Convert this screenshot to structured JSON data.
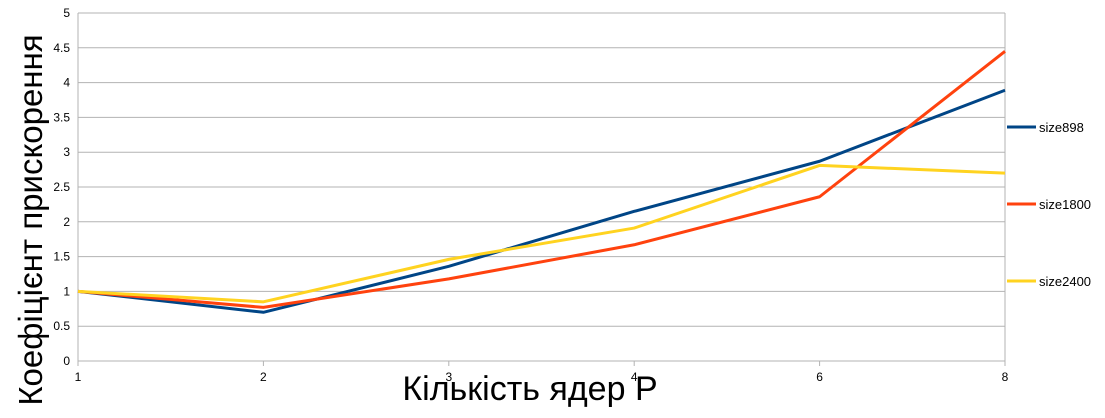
{
  "chart_data": {
    "type": "line",
    "xlabel": "Кількість ядер P",
    "ylabel": "Коефіцієнт прискорення",
    "x_ticks": [
      1,
      2,
      3,
      4,
      6,
      8
    ],
    "y_ticks": [
      "0",
      "0.5",
      "1",
      "1.5",
      "2",
      "2.5",
      "3",
      "3.5",
      "4",
      "4.5",
      "5"
    ],
    "ylim": [
      0,
      5
    ],
    "grid": "horizontal",
    "legend_position": "right",
    "series": [
      {
        "name": "size898",
        "color": "#004586",
        "x": [
          1,
          2,
          3,
          4,
          6,
          8
        ],
        "values": [
          1.0,
          0.7,
          1.36,
          2.15,
          2.87,
          3.89
        ]
      },
      {
        "name": "size1800",
        "color": "#ff420e",
        "x": [
          1,
          2,
          3,
          4,
          6,
          8
        ],
        "values": [
          1.0,
          0.77,
          1.18,
          1.67,
          2.36,
          4.45
        ]
      },
      {
        "name": "size2400",
        "color": "#ffd320",
        "x": [
          1,
          2,
          3,
          4,
          6,
          8
        ],
        "values": [
          1.0,
          0.85,
          1.46,
          1.91,
          2.81,
          2.7
        ]
      }
    ]
  }
}
